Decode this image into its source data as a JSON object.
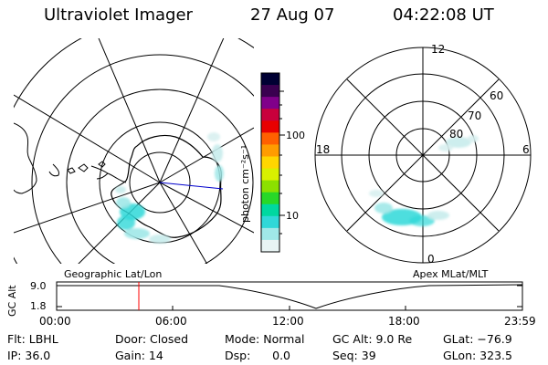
{
  "header": {
    "title": "Ultraviolet Imager",
    "date": "27 Aug 07",
    "time": "04:22:08 UT"
  },
  "colorbar": {
    "unit_label": "photon cm⁻²s⁻¹",
    "tick_100": "100",
    "tick_10": "10",
    "colors": [
      "#000033",
      "#3a0050",
      "#80008a",
      "#c8003c",
      "#e80000",
      "#ff6000",
      "#ff9c00",
      "#ffd600",
      "#d8f000",
      "#8ce000",
      "#28d828",
      "#00d8a0",
      "#30d8d8",
      "#a0e8e8",
      "#e8f4f4"
    ]
  },
  "geo_map": {
    "label": "Geographic Lat/Lon"
  },
  "apex_map": {
    "label": "Apex MLat/MLT",
    "mlt_labels": {
      "top": "12",
      "left": "18",
      "right": "6",
      "bottom": "0"
    },
    "lat_labels": [
      "60",
      "70",
      "80"
    ]
  },
  "altitude_plot": {
    "axis_label": "GC Alt",
    "y_ticks": [
      "9.0",
      "1.8"
    ],
    "x_ticks": [
      "00:00",
      "06:00",
      "12:00",
      "18:00",
      "23:59"
    ],
    "current_time_marker_color": "#ff0000"
  },
  "footer": {
    "flt": "Flt: LBHL",
    "door": "Door: Closed",
    "mode": "Mode: Normal",
    "gc_alt": "GC Alt: 9.0 Re",
    "glat": "GLat: −76.9",
    "ip": "IP: 36.0",
    "gain": "Gain: 14",
    "dsp": "Dsp:      0.0",
    "seq": "Seq: 39",
    "glon": "GLon: 323.5"
  }
}
